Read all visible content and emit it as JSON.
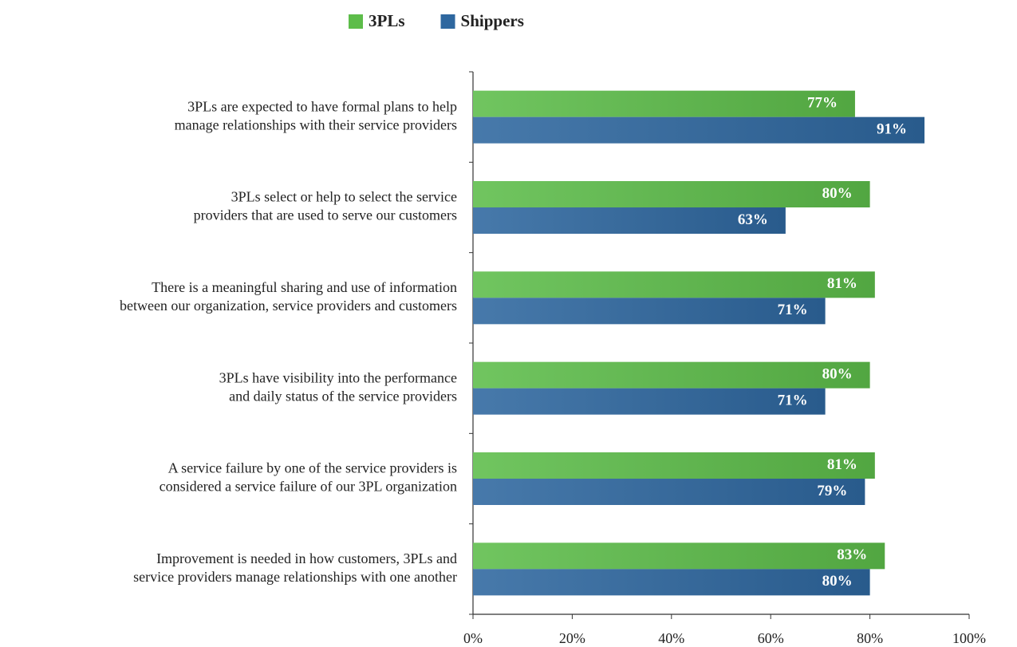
{
  "chart_data": {
    "type": "barh",
    "categories": [
      [
        "3PLs are expected to have formal plans to help",
        "manage relationships with their service providers"
      ],
      [
        "3PLs select or help to select the service",
        "providers that are used to serve our customers"
      ],
      [
        "There is a meaningful sharing and use of information",
        "between our organization, service providers  and customers"
      ],
      [
        "3PLs have visibility into the performance",
        "and daily status of the service providers"
      ],
      [
        "A service failure by one of the service providers is",
        "considered a service failure of our 3PL organization"
      ],
      [
        "Improvement is needed in how customers, 3PLs and",
        "service providers manage relationships with one another"
      ]
    ],
    "series": [
      {
        "name": "3PLs",
        "color": "#5dbd4a",
        "values": [
          77,
          80,
          81,
          80,
          81,
          83
        ],
        "value_labels": [
          "77%",
          "80%",
          "81%",
          "80%",
          "81%",
          "83%"
        ]
      },
      {
        "name": "Shippers",
        "color": "#2e679f",
        "values": [
          91,
          63,
          71,
          71,
          79,
          80
        ],
        "value_labels": [
          "91%",
          "63%",
          "71%",
          "71%",
          "79%",
          "80%"
        ]
      }
    ],
    "xlim": [
      0,
      100
    ],
    "xticks": [
      {
        "value": 0,
        "label": "0%"
      },
      {
        "value": 20,
        "label": "20%"
      },
      {
        "value": 40,
        "label": "40%"
      },
      {
        "value": 60,
        "label": "60%"
      },
      {
        "value": 80,
        "label": "80%"
      },
      {
        "value": 100,
        "label": "100%"
      }
    ],
    "legend": "top"
  }
}
